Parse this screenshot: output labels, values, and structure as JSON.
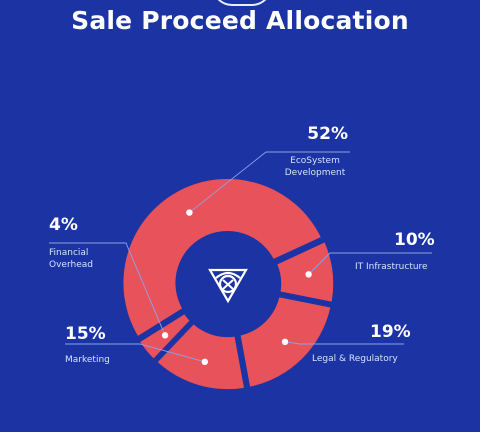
{
  "title": "Sale Proceed Allocation",
  "colors": {
    "background": "#1b33a3",
    "slice": "#e8525a",
    "hole": "#1b33a3",
    "leader": "#8ea3e6"
  },
  "logo": {
    "icon": "shield-triangle-logo-icon"
  },
  "chart_data": {
    "type": "pie",
    "donut": true,
    "title": "Sale Proceed Allocation",
    "slices": [
      {
        "label": "EcoSystem Development",
        "pct_label": "52%",
        "value": 52
      },
      {
        "label": "IT Infrastructure",
        "pct_label": "10%",
        "value": 10
      },
      {
        "label": "Legal & Regulatory",
        "pct_label": "19%",
        "value": 19
      },
      {
        "label": "Marketing",
        "pct_label": "15%",
        "value": 15
      },
      {
        "label": "Financial Overhead",
        "pct_label": "4%",
        "value": 4
      }
    ]
  }
}
